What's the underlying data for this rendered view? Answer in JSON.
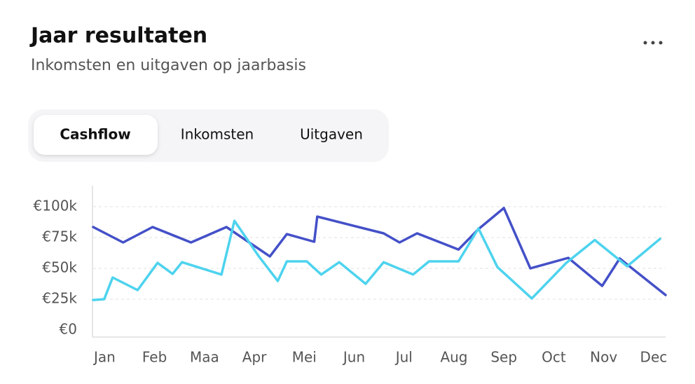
{
  "header": {
    "title": "Jaar resultaten",
    "subtitle": "Inkomsten en uitgaven op jaarbasis"
  },
  "tabs": [
    "Cashflow",
    "Inkomsten",
    "Uitgaven"
  ],
  "active_tab": 0,
  "chart_data": {
    "type": "line",
    "xlim": [
      -0.23,
      11.24
    ],
    "xticks": [
      {
        "value": 0,
        "label": "Jan"
      },
      {
        "value": 1,
        "label": "Feb"
      },
      {
        "value": 2,
        "label": "Maa"
      },
      {
        "value": 3,
        "label": "Apr"
      },
      {
        "value": 4,
        "label": "Mei"
      },
      {
        "value": 5,
        "label": "Jun"
      },
      {
        "value": 6,
        "label": "Jul"
      },
      {
        "value": 7,
        "label": "Aug"
      },
      {
        "value": 8,
        "label": "Sep"
      },
      {
        "value": 9,
        "label": "Oct"
      },
      {
        "value": 10,
        "label": "Nov"
      },
      {
        "value": 11,
        "label": "Dec"
      }
    ],
    "ylim": [
      0,
      100
    ],
    "yticks": [
      {
        "value": 0,
        "label": "€0"
      },
      {
        "value": 25,
        "label": "€25k"
      },
      {
        "value": 50,
        "label": "€50k"
      },
      {
        "value": 75,
        "label": "€75k"
      },
      {
        "value": 100,
        "label": "€100k"
      }
    ],
    "grid": true,
    "series": [
      {
        "color": "#4450c8",
        "x": [
          -0.23,
          0.37,
          0.96,
          1.73,
          2.44,
          3.31,
          3.65,
          4.2,
          4.26,
          5.59,
          5.91,
          6.26,
          7.09,
          7.49,
          8.0,
          8.53,
          9.29,
          9.97,
          10.32,
          11.24
        ],
        "values": [
          83.5,
          71,
          83.5,
          71,
          83.5,
          59.7,
          77.8,
          71.6,
          92,
          78.4,
          71,
          78.4,
          65.3,
          81.8,
          98.9,
          50,
          58.5,
          35.8,
          58,
          28.4
        ]
      },
      {
        "color": "#4dd3ee",
        "x": [
          -0.23,
          -0.01,
          0.16,
          0.66,
          1.06,
          1.36,
          1.55,
          2.34,
          2.6,
          3.09,
          3.47,
          3.65,
          4.05,
          4.34,
          4.7,
          5.23,
          5.59,
          6.18,
          6.5,
          7.09,
          7.49,
          7.87,
          8.56,
          9.25,
          9.82,
          10.47,
          11.13
        ],
        "values": [
          24.4,
          25,
          42.6,
          32.4,
          54.5,
          45.5,
          55,
          45,
          88.6,
          59.7,
          39.8,
          55.7,
          55.7,
          45,
          55,
          37.5,
          55,
          45,
          55.7,
          55.7,
          82.4,
          51,
          25.6,
          54.5,
          73,
          51.7,
          74
        ]
      }
    ]
  }
}
